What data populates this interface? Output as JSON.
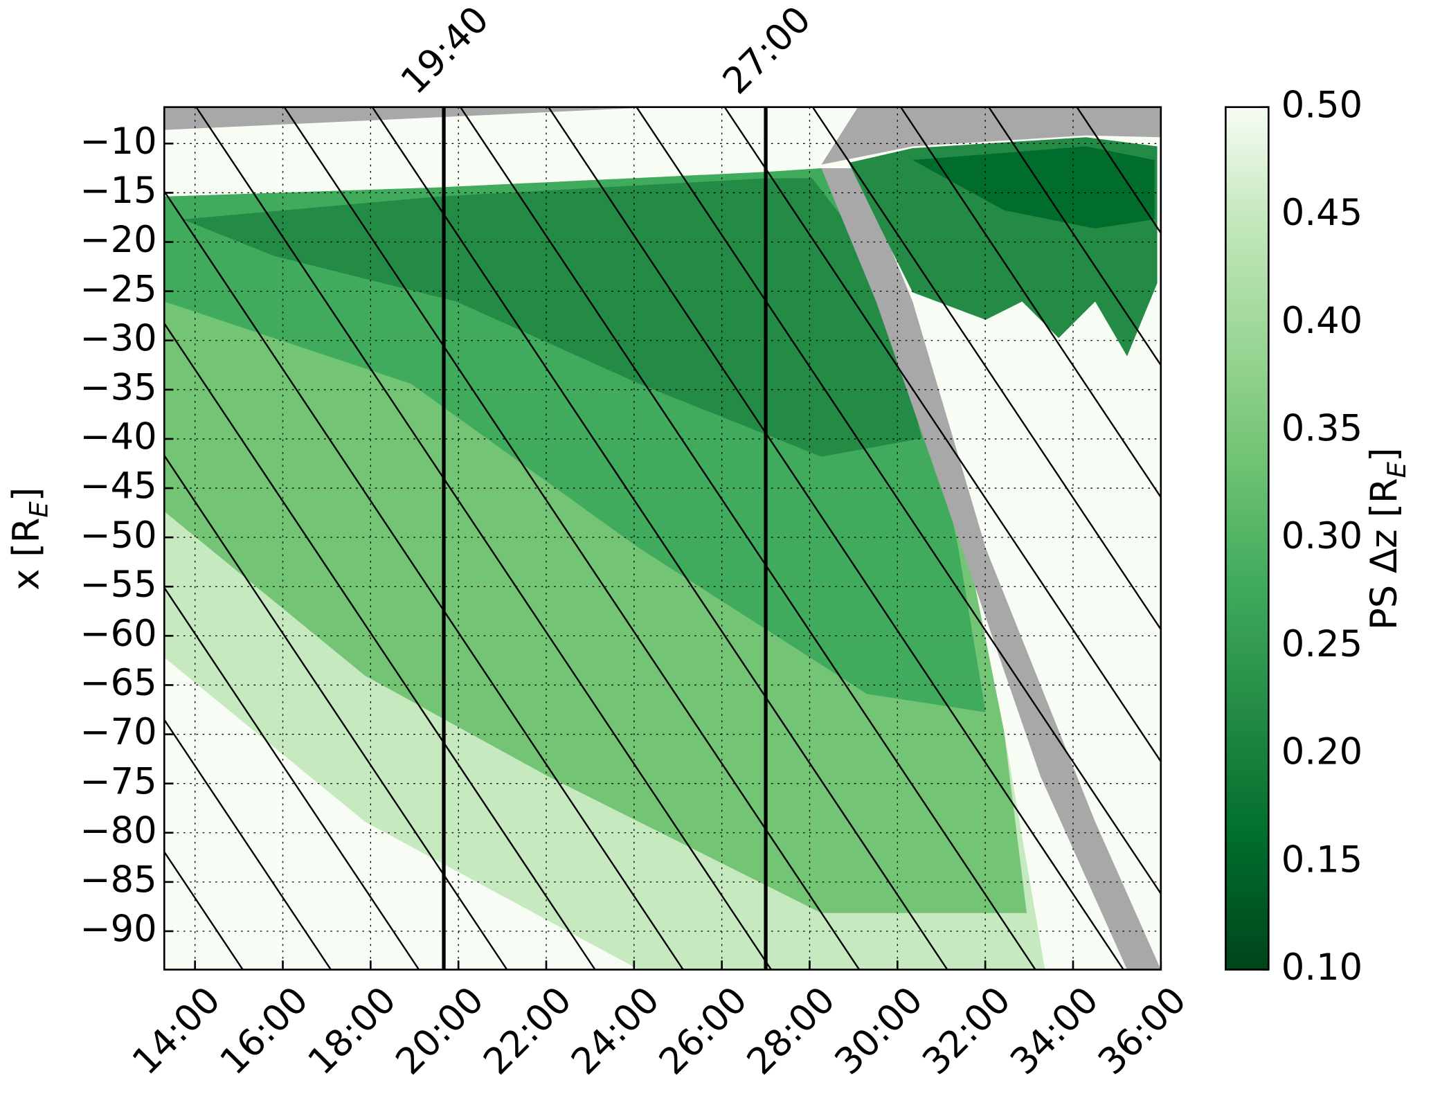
{
  "chart_data": {
    "type": "heatmap",
    "ylabel": [
      "x [R",
      "E",
      "]"
    ],
    "xlim": [
      13.3,
      36
    ],
    "xticks": [
      {
        "value": 14,
        "label": "14:00"
      },
      {
        "value": 16,
        "label": "16:00"
      },
      {
        "value": 18,
        "label": "18:00"
      },
      {
        "value": 20,
        "label": "20:00"
      },
      {
        "value": 22,
        "label": "22:00"
      },
      {
        "value": 24,
        "label": "24:00"
      },
      {
        "value": 26,
        "label": "26:00"
      },
      {
        "value": 28,
        "label": "28:00"
      },
      {
        "value": 30,
        "label": "30:00"
      },
      {
        "value": 32,
        "label": "32:00"
      },
      {
        "value": 34,
        "label": "34:00"
      },
      {
        "value": 36,
        "label": "36:00"
      }
    ],
    "ylim": [
      -93.9,
      -6.3
    ],
    "yticks": [
      {
        "value": -10,
        "label": "−10"
      },
      {
        "value": -15,
        "label": "−15"
      },
      {
        "value": -20,
        "label": "−20"
      },
      {
        "value": -25,
        "label": "−25"
      },
      {
        "value": -30,
        "label": "−30"
      },
      {
        "value": -35,
        "label": "−35"
      },
      {
        "value": -40,
        "label": "−40"
      },
      {
        "value": -45,
        "label": "−45"
      },
      {
        "value": -50,
        "label": "−50"
      },
      {
        "value": -55,
        "label": "−55"
      },
      {
        "value": -60,
        "label": "−60"
      },
      {
        "value": -65,
        "label": "−65"
      },
      {
        "value": -70,
        "label": "−70"
      },
      {
        "value": -75,
        "label": "−75"
      },
      {
        "value": -80,
        "label": "−80"
      },
      {
        "value": -85,
        "label": "−85"
      },
      {
        "value": -90,
        "label": "−90"
      }
    ],
    "grid": true,
    "colorbar": {
      "label": [
        "PS Δz [R",
        "E",
        "]"
      ],
      "lim": [
        0.1,
        0.5
      ],
      "ticks": [
        {
          "value": 0.1,
          "label": "0.10"
        },
        {
          "value": 0.15,
          "label": "0.15"
        },
        {
          "value": 0.2,
          "label": "0.20"
        },
        {
          "value": 0.25,
          "label": "0.25"
        },
        {
          "value": 0.3,
          "label": "0.30"
        },
        {
          "value": 0.35,
          "label": "0.35"
        },
        {
          "value": 0.4,
          "label": "0.40"
        },
        {
          "value": 0.45,
          "label": "0.45"
        },
        {
          "value": 0.5,
          "label": "0.50"
        }
      ]
    },
    "markers": [
      {
        "x": 19.6667,
        "label": "19:40"
      },
      {
        "x": 27,
        "label": "27:00"
      }
    ]
  }
}
